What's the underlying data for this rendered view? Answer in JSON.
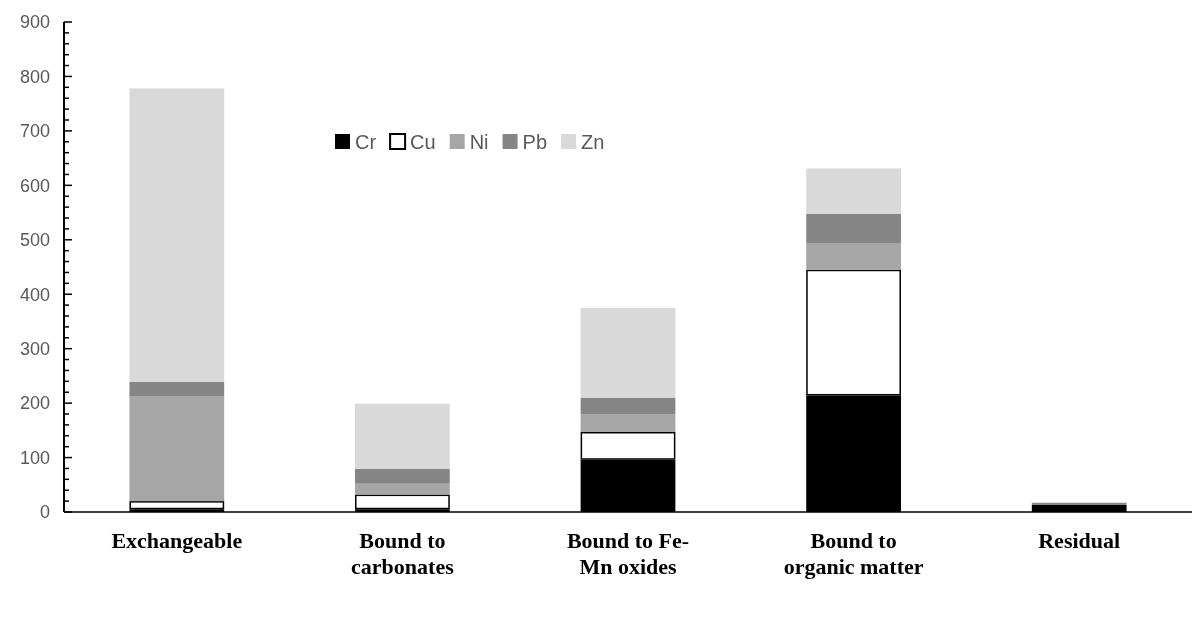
{
  "chart_data": {
    "type": "bar",
    "stacked": true,
    "categories": [
      "Exchangeable",
      "Bound to carbonates",
      "Bound to Fe-Mn oxides",
      "Bound to organic matter",
      "Residual"
    ],
    "series": [
      {
        "name": "Cr",
        "color": "#000000",
        "values": [
          5,
          5,
          96,
          214,
          13
        ]
      },
      {
        "name": "Cu",
        "color": "#ffffff",
        "values": [
          15,
          27,
          51,
          231,
          0
        ]
      },
      {
        "name": "Ni",
        "color": "#a6a6a6",
        "values": [
          192,
          20,
          32,
          49,
          null
        ]
      },
      {
        "name": "Pb",
        "color": "#858585",
        "values": [
          27,
          27,
          31,
          54,
          4
        ]
      },
      {
        "name": "Zn",
        "color": "#d9d9d9",
        "values": [
          539,
          120,
          165,
          83,
          0
        ]
      }
    ],
    "ylim": [
      0,
      900
    ],
    "yticks": [
      0,
      {
        "value": 20,
        "label": null
      },
      {
        "value": 40,
        "label": null
      },
      {
        "value": 60,
        "label": null
      },
      {
        "value": 80,
        "label": null
      },
      100,
      {
        "value": 120,
        "label": null
      },
      {
        "value": 140,
        "label": null
      },
      {
        "value": 160,
        "label": null
      },
      {
        "value": 180,
        "label": null
      },
      200,
      {
        "value": 220,
        "label": null
      },
      {
        "value": 240,
        "label": null
      },
      {
        "value": 260,
        "label": null
      },
      {
        "value": 280,
        "label": null
      },
      300,
      {
        "value": 320,
        "label": null
      },
      {
        "value": 340,
        "label": null
      },
      {
        "value": 360,
        "label": null
      },
      {
        "value": 380,
        "label": null
      },
      400,
      {
        "value": 420,
        "label": null
      },
      {
        "value": 440,
        "label": null
      },
      {
        "value": 460,
        "label": null
      },
      {
        "value": 480,
        "label": null
      },
      500,
      {
        "value": 520,
        "label": null
      },
      {
        "value": 540,
        "label": null
      },
      {
        "value": 560,
        "label": null
      },
      {
        "value": 580,
        "label": null
      },
      600,
      {
        "value": 620,
        "label": null
      },
      {
        "value": 640,
        "label": null
      },
      {
        "value": 660,
        "label": null
      },
      {
        "value": 680,
        "label": null
      },
      700,
      {
        "value": 720,
        "label": null
      },
      {
        "value": 740,
        "label": null
      },
      {
        "value": 760,
        "label": null
      },
      {
        "value": 780,
        "label": null
      },
      800,
      {
        "value": 820,
        "label": null
      },
      {
        "value": 840,
        "label": null
      },
      {
        "value": 860,
        "label": null
      },
      {
        "value": 880,
        "label": null
      },
      900
    ],
    "legend": "top",
    "grid": false
  }
}
